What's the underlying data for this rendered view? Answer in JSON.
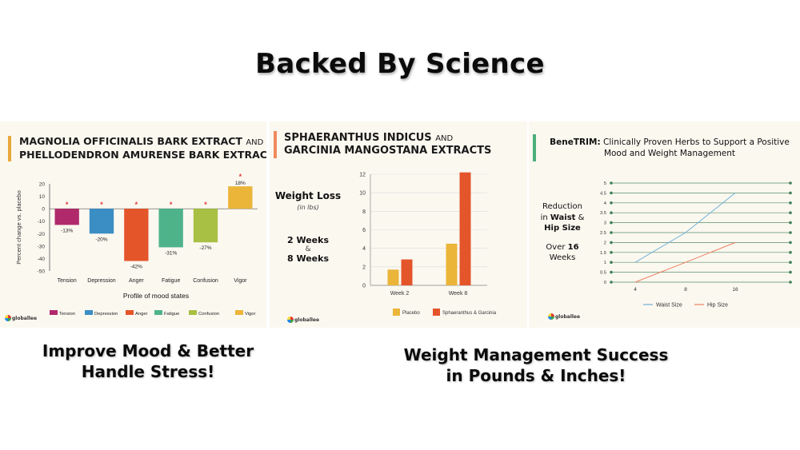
{
  "page": {
    "title": "Backed By Science",
    "captions": [
      "Improve Mood & Better Handle Stress!",
      "Weight Management Success in Pounds & Inches!"
    ],
    "logo_text": "globallee"
  },
  "panel1": {
    "title_line1": "MAGNOLIA OFFICINALIS BARK EXTRACT",
    "title_and": "AND",
    "title_line2": "PHELLODENDRON AMURENSE BARK EXTRACT",
    "accent_color": "#e8a93a"
  },
  "panel2": {
    "title_line1": "SPHAERANTHUS INDICUS",
    "title_and": "AND",
    "title_line2": "GARCINIA MANGOSTANA EXTRACTS",
    "accent_color": "#f08a5d",
    "side_label": "Weight Loss",
    "side_unit": "(in lbs)",
    "side_weeks_a": "2 Weeks",
    "side_amp": "&",
    "side_weeks_b": "8 Weeks"
  },
  "panel3": {
    "title_bold": "BeneTRIM:",
    "title_rest": "Clinically Proven Herbs to Support a Positive",
    "title_line2": "Mood and Weight Management",
    "accent_color": "#4caf7a",
    "side_l1": "Reduction",
    "side_l2_pre": "in ",
    "side_l2_bold": "Waist",
    "side_l2_post": " &",
    "side_l3": "Hip Size",
    "side_l4_pre": "Over ",
    "side_l4_bold": "16",
    "side_l5": "Weeks"
  },
  "chart_data": [
    {
      "type": "bar",
      "title": "",
      "xlabel": "Profile of mood states",
      "ylabel": "Percent change vs. placebo",
      "ylim": [
        -50,
        20
      ],
      "yticks": [
        20,
        10,
        0,
        -10,
        -20,
        -30,
        -40,
        -50
      ],
      "categories": [
        "Tension",
        "Depression",
        "Anger",
        "Fatigue",
        "Confusion",
        "Vigor"
      ],
      "values": [
        -13,
        -20,
        -42,
        -31,
        -27,
        18
      ],
      "data_labels": [
        "-13%",
        "-20%",
        "-42%",
        "-31%",
        "-27%",
        "18%"
      ],
      "colors": [
        "#b02a6b",
        "#3b8ec4",
        "#e4552a",
        "#4fb38a",
        "#a8c043",
        "#ebb53a"
      ],
      "significance_marker": "*",
      "marker_color": "#e53935",
      "legend": "bottom",
      "grid": false
    },
    {
      "type": "bar",
      "title": "",
      "xlabel": "",
      "ylabel": "",
      "ylim": [
        0,
        12
      ],
      "yticks": [
        0,
        2,
        4,
        6,
        8,
        10,
        12
      ],
      "categories": [
        "Week 2",
        "Week 8"
      ],
      "series": [
        {
          "name": "Placebo",
          "values": [
            1.7,
            4.5
          ],
          "color": "#ebb53a"
        },
        {
          "name": "Sphaeranthus & Garcinia",
          "values": [
            2.8,
            12.2
          ],
          "color": "#e4552a"
        }
      ],
      "legend": "bottom",
      "grid": true
    },
    {
      "type": "line",
      "title": "",
      "xlabel": "",
      "ylabel": "",
      "x": [
        "4",
        "8",
        "16"
      ],
      "ylim": [
        0,
        5
      ],
      "yticks": [
        0,
        0.5,
        1,
        1.5,
        2,
        2.5,
        3,
        3.5,
        4,
        4.5,
        5
      ],
      "series": [
        {
          "name": "Waist Size",
          "values": [
            1,
            2.5,
            4.5
          ],
          "color": "#6fb1d6"
        },
        {
          "name": "Hip Size",
          "values": [
            0,
            1,
            2
          ],
          "color": "#ef8060"
        }
      ],
      "legend": "bottom",
      "grid": true
    }
  ]
}
